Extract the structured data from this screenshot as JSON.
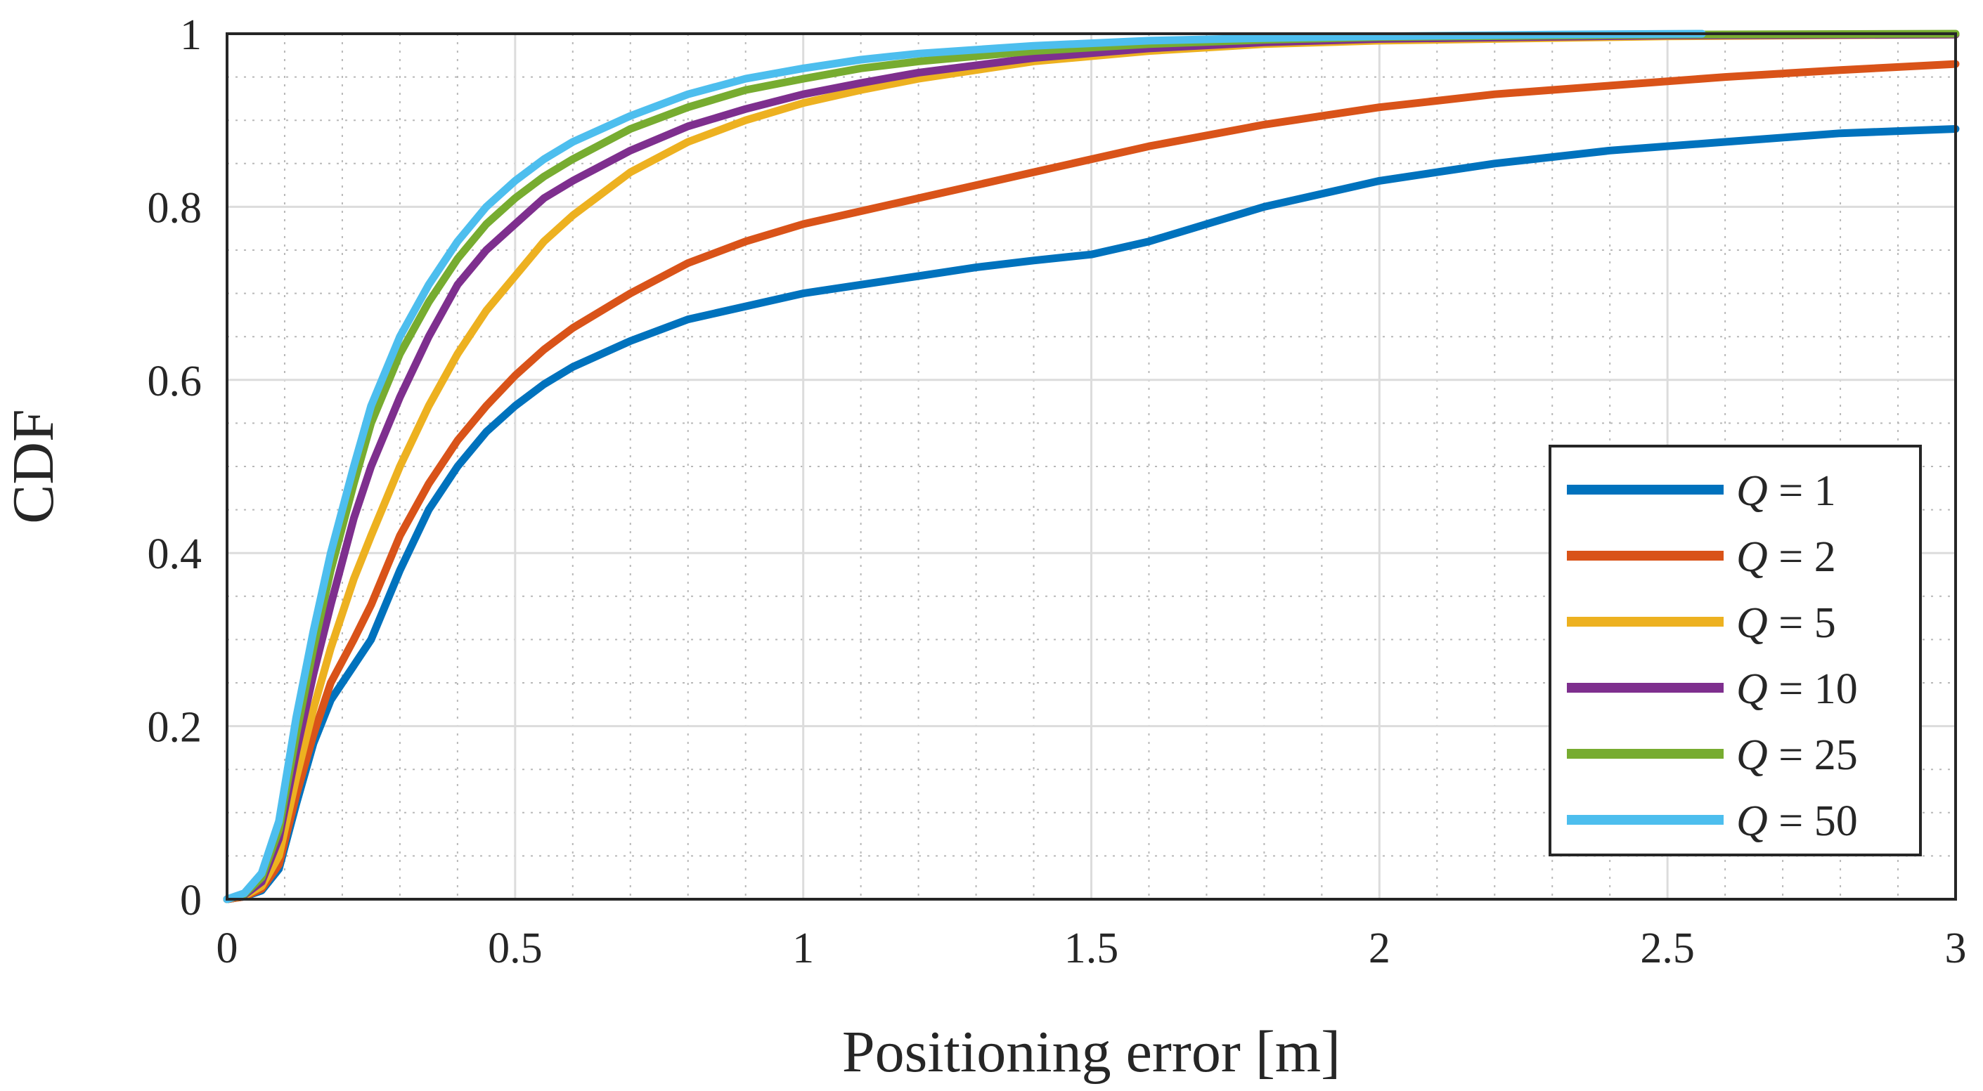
{
  "chart_data": {
    "type": "line",
    "title": "",
    "xlabel": "Positioning error [m]",
    "ylabel": "CDF",
    "xlim": [
      0,
      3
    ],
    "ylim": [
      0,
      1
    ],
    "xticks": [
      0,
      0.5,
      1,
      1.5,
      2,
      2.5,
      3
    ],
    "xtick_labels": [
      "0",
      "0.5",
      "1",
      "1.5",
      "2",
      "2.5",
      "3"
    ],
    "yticks": [
      0,
      0.2,
      0.4,
      0.6,
      0.8,
      1
    ],
    "ytick_labels": [
      "0",
      "0.2",
      "0.4",
      "0.6",
      "0.8",
      "1"
    ],
    "grid": true,
    "minor_grid": true,
    "legend_position": "lower-right",
    "series": [
      {
        "name": "Q = 1",
        "q_value": "1",
        "color": "#0072BD",
        "x": [
          0,
          0.03,
          0.06,
          0.09,
          0.12,
          0.15,
          0.18,
          0.22,
          0.25,
          0.3,
          0.35,
          0.4,
          0.45,
          0.5,
          0.55,
          0.6,
          0.7,
          0.8,
          0.9,
          1.0,
          1.1,
          1.2,
          1.3,
          1.4,
          1.5,
          1.6,
          1.7,
          1.8,
          1.9,
          2.0,
          2.2,
          2.4,
          2.6,
          2.8,
          3.0
        ],
        "y": [
          0,
          0.003,
          0.01,
          0.035,
          0.11,
          0.18,
          0.23,
          0.27,
          0.3,
          0.38,
          0.45,
          0.5,
          0.54,
          0.57,
          0.595,
          0.615,
          0.645,
          0.67,
          0.685,
          0.7,
          0.71,
          0.72,
          0.73,
          0.738,
          0.745,
          0.76,
          0.78,
          0.8,
          0.815,
          0.83,
          0.85,
          0.865,
          0.875,
          0.885,
          0.89
        ]
      },
      {
        "name": "Q = 2",
        "q_value": "2",
        "color": "#D95319",
        "x": [
          0,
          0.03,
          0.06,
          0.09,
          0.12,
          0.15,
          0.18,
          0.22,
          0.25,
          0.3,
          0.35,
          0.4,
          0.45,
          0.5,
          0.55,
          0.6,
          0.7,
          0.8,
          0.9,
          1.0,
          1.1,
          1.2,
          1.4,
          1.6,
          1.8,
          2.0,
          2.2,
          2.4,
          2.6,
          2.8,
          3.0
        ],
        "y": [
          0,
          0.003,
          0.012,
          0.04,
          0.12,
          0.19,
          0.25,
          0.3,
          0.34,
          0.42,
          0.48,
          0.53,
          0.57,
          0.605,
          0.635,
          0.66,
          0.7,
          0.735,
          0.76,
          0.78,
          0.795,
          0.81,
          0.84,
          0.87,
          0.895,
          0.915,
          0.93,
          0.94,
          0.95,
          0.958,
          0.965
        ]
      },
      {
        "name": "Q = 5",
        "q_value": "5",
        "color": "#EDB120",
        "x": [
          0,
          0.03,
          0.06,
          0.09,
          0.12,
          0.15,
          0.18,
          0.22,
          0.25,
          0.3,
          0.35,
          0.4,
          0.45,
          0.5,
          0.55,
          0.6,
          0.7,
          0.8,
          0.9,
          1.0,
          1.1,
          1.2,
          1.4,
          1.6,
          1.8,
          2.0,
          2.5,
          3.0
        ],
        "y": [
          0,
          0.004,
          0.015,
          0.05,
          0.14,
          0.22,
          0.29,
          0.37,
          0.42,
          0.5,
          0.57,
          0.63,
          0.68,
          0.72,
          0.76,
          0.79,
          0.84,
          0.875,
          0.9,
          0.92,
          0.935,
          0.948,
          0.968,
          0.98,
          0.988,
          0.992,
          0.997,
          0.999
        ]
      },
      {
        "name": "Q = 10",
        "q_value": "10",
        "color": "#7E2F8E",
        "x": [
          0,
          0.03,
          0.06,
          0.09,
          0.12,
          0.15,
          0.18,
          0.22,
          0.25,
          0.3,
          0.35,
          0.4,
          0.45,
          0.5,
          0.55,
          0.6,
          0.7,
          0.8,
          0.9,
          1.0,
          1.1,
          1.2,
          1.4,
          1.6,
          1.8,
          2.0,
          2.5,
          3.0
        ],
        "y": [
          0,
          0.005,
          0.02,
          0.07,
          0.17,
          0.26,
          0.34,
          0.44,
          0.5,
          0.58,
          0.65,
          0.71,
          0.75,
          0.78,
          0.81,
          0.83,
          0.865,
          0.893,
          0.913,
          0.93,
          0.943,
          0.955,
          0.972,
          0.983,
          0.99,
          0.994,
          0.998,
          0.999
        ]
      },
      {
        "name": "Q = 25",
        "q_value": "25",
        "color": "#77AC30",
        "x": [
          0,
          0.03,
          0.06,
          0.09,
          0.12,
          0.15,
          0.18,
          0.22,
          0.25,
          0.3,
          0.35,
          0.4,
          0.45,
          0.5,
          0.55,
          0.6,
          0.7,
          0.8,
          0.9,
          1.0,
          1.1,
          1.2,
          1.4,
          1.6,
          1.8,
          2.0,
          2.5,
          3.0
        ],
        "y": [
          0,
          0.006,
          0.025,
          0.08,
          0.19,
          0.29,
          0.38,
          0.48,
          0.55,
          0.63,
          0.69,
          0.74,
          0.78,
          0.81,
          0.835,
          0.855,
          0.89,
          0.915,
          0.935,
          0.948,
          0.96,
          0.968,
          0.98,
          0.988,
          0.993,
          0.996,
          0.999,
          1.0
        ]
      },
      {
        "name": "Q = 50",
        "q_value": "50",
        "color": "#4DBEEE",
        "x": [
          0,
          0.03,
          0.06,
          0.09,
          0.12,
          0.15,
          0.18,
          0.22,
          0.25,
          0.3,
          0.35,
          0.4,
          0.45,
          0.5,
          0.55,
          0.6,
          0.7,
          0.8,
          0.9,
          1.0,
          1.1,
          1.2,
          1.4,
          1.6,
          1.8,
          2.0,
          2.3,
          2.56
        ],
        "y": [
          0,
          0.007,
          0.03,
          0.09,
          0.21,
          0.31,
          0.4,
          0.5,
          0.57,
          0.65,
          0.71,
          0.76,
          0.8,
          0.83,
          0.855,
          0.875,
          0.905,
          0.93,
          0.948,
          0.96,
          0.97,
          0.977,
          0.986,
          0.992,
          0.995,
          0.997,
          0.999,
          1.0
        ]
      }
    ]
  }
}
